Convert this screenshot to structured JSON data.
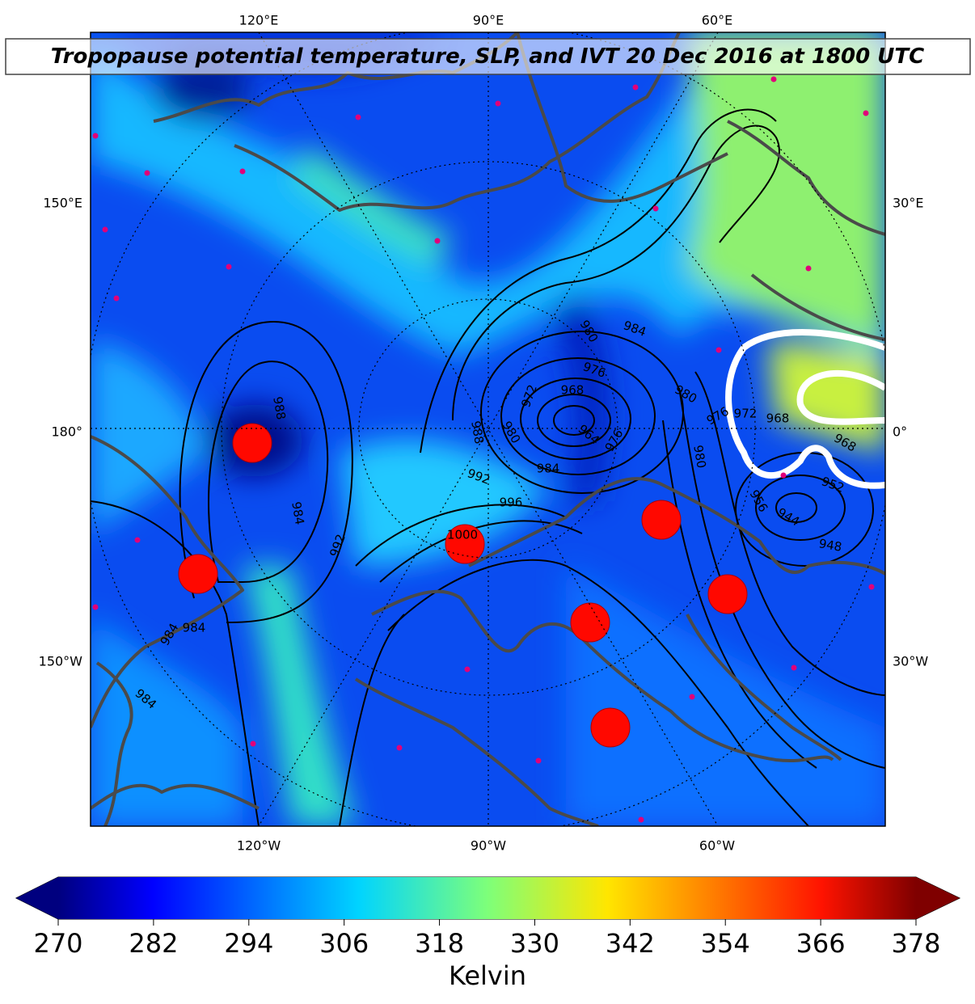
{
  "map": {
    "title": "Tropopause potential temperature, SLP, and IVT 20 Dec 2016 at 1800 UTC",
    "lon_labels": {
      "top": [
        "120°E",
        "90°E",
        "60°E"
      ],
      "bottom": [
        "120°W",
        "90°W",
        "60°W"
      ],
      "left": [
        "150°E",
        "180°",
        "150°W"
      ],
      "right": [
        "30°E",
        "0°",
        "30°W"
      ]
    },
    "contour_labels": [
      "988",
      "984",
      "992",
      "996",
      "1000",
      "984",
      "984",
      "984",
      "980",
      "984",
      "976",
      "968",
      "972",
      "980",
      "988",
      "964",
      "976",
      "984",
      "992",
      "980",
      "980",
      "976",
      "972",
      "968",
      "968",
      "952",
      "956",
      "944",
      "948"
    ]
  },
  "colorbar": {
    "range": [
      270,
      378
    ],
    "ticks": [
      270,
      282,
      294,
      306,
      318,
      330,
      342,
      354,
      366,
      378
    ],
    "label": "Kelvin"
  }
}
